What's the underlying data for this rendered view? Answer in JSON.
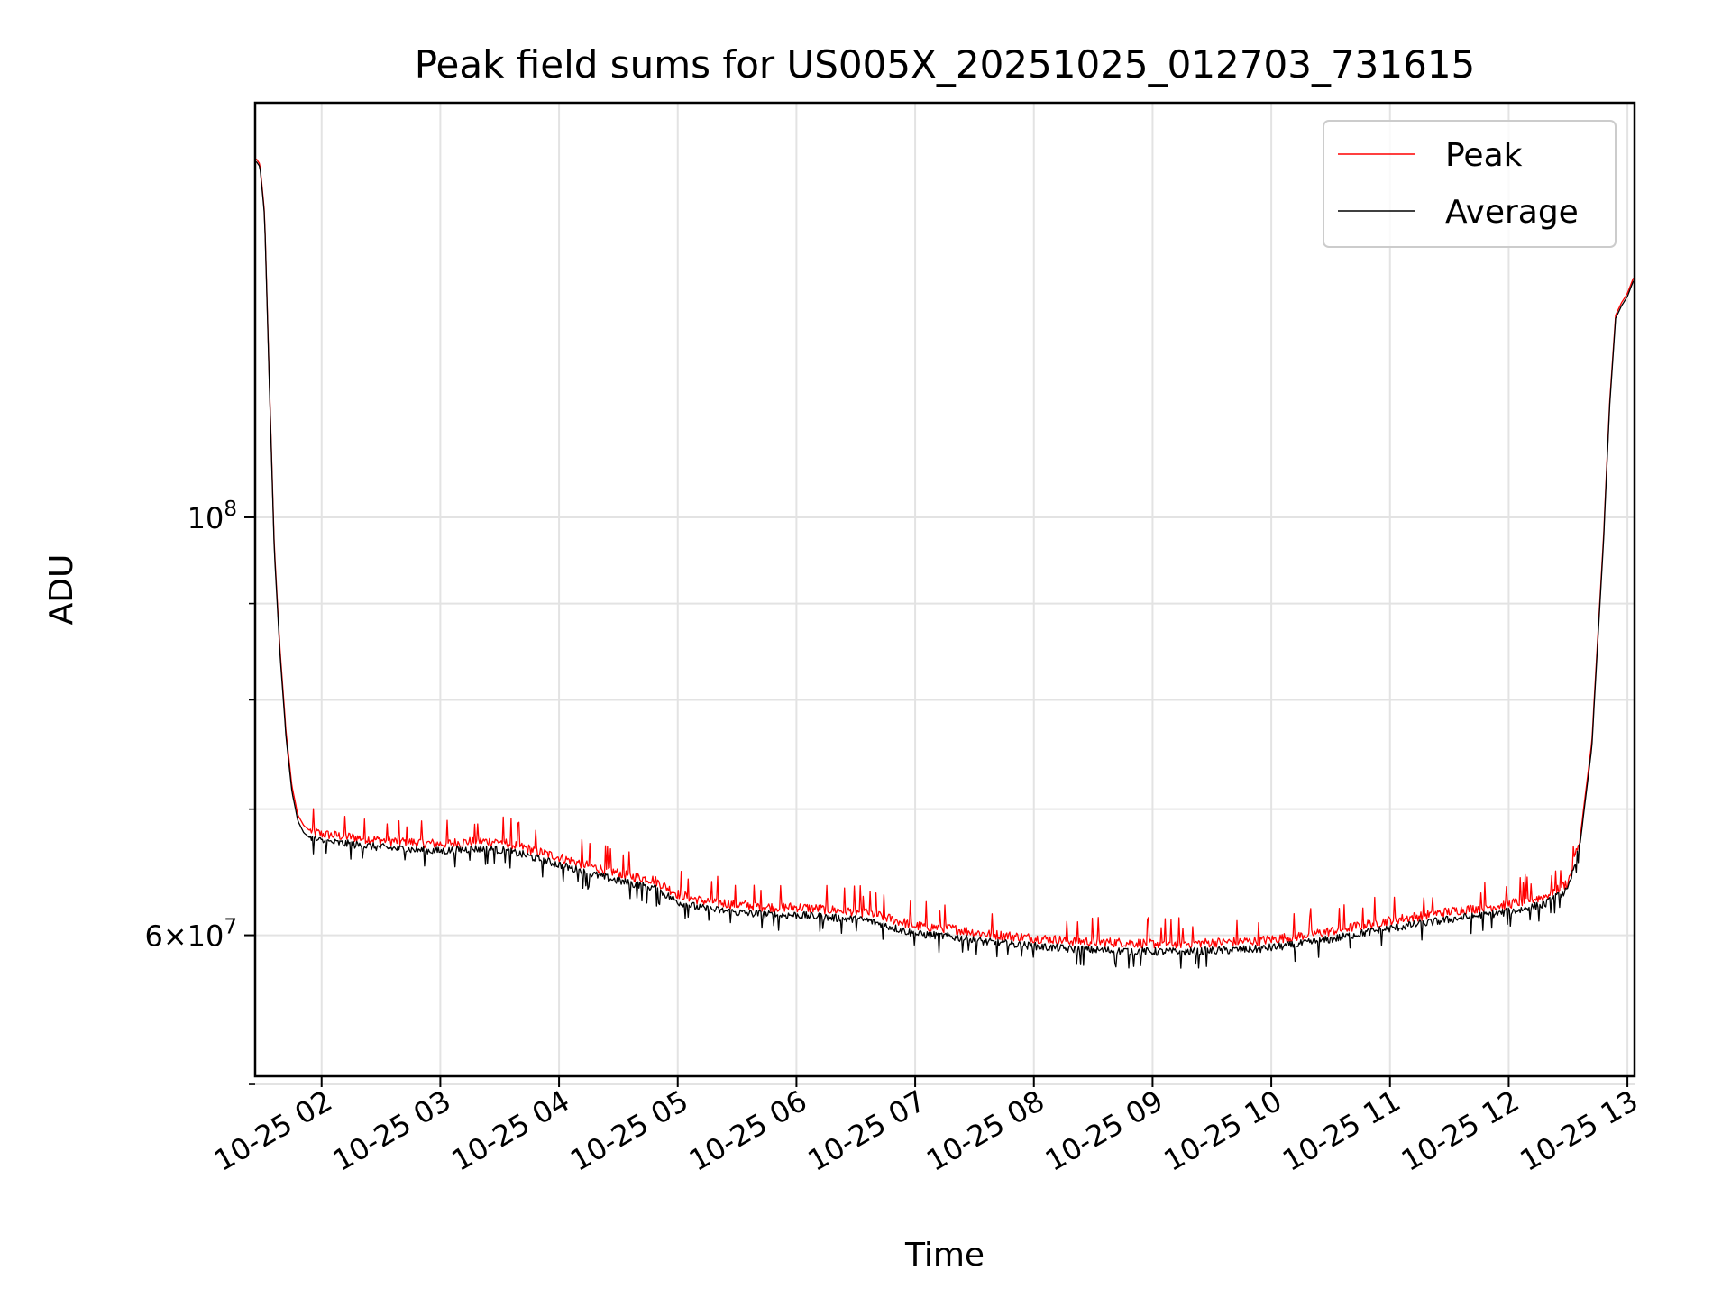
{
  "chart_data": {
    "type": "line",
    "title": "Peak field sums for US005X_20251025_012703_731615",
    "xlabel": "Time",
    "ylabel": "ADU",
    "yscale": "log",
    "ylim": [
      50500000,
      166000000
    ],
    "xlim": [
      1.44,
      13.06
    ],
    "grid": true,
    "legend_position": "top-right",
    "x_ticks": [
      {
        "value": 2,
        "label": "10-25 02"
      },
      {
        "value": 3,
        "label": "10-25 03"
      },
      {
        "value": 4,
        "label": "10-25 04"
      },
      {
        "value": 5,
        "label": "10-25 05"
      },
      {
        "value": 6,
        "label": "10-25 06"
      },
      {
        "value": 7,
        "label": "10-25 07"
      },
      {
        "value": 8,
        "label": "10-25 08"
      },
      {
        "value": 9,
        "label": "10-25 09"
      },
      {
        "value": 10,
        "label": "10-25 10"
      },
      {
        "value": 11,
        "label": "10-25 11"
      },
      {
        "value": 12,
        "label": "10-25 12"
      },
      {
        "value": 13,
        "label": "10-25 13"
      }
    ],
    "y_major_ticks": [
      {
        "value": 60000000,
        "mantissa": "6",
        "base": "10",
        "exponent": "7"
      },
      {
        "value": 100000000,
        "mantissa": "",
        "base": "10",
        "exponent": "8"
      }
    ],
    "y_minor_ticks": [
      50000000,
      70000000,
      80000000,
      90000000
    ],
    "times_unit": "hours since 10-25 00:00",
    "series": [
      {
        "name": "Peak",
        "color": "#ff0000",
        "x": [
          1.45,
          1.48,
          1.52,
          1.56,
          1.6,
          1.65,
          1.7,
          1.75,
          1.8,
          1.85,
          1.9,
          2.0,
          2.2,
          2.5,
          2.8,
          3.0,
          3.3,
          3.5,
          3.7,
          4.0,
          4.3,
          4.6,
          4.8,
          5.0,
          5.2,
          5.5,
          5.8,
          6.0,
          6.3,
          6.6,
          6.8,
          7.0,
          7.3,
          7.6,
          8.0,
          8.3,
          8.6,
          9.0,
          9.3,
          9.6,
          9.9,
          10.2,
          10.5,
          10.8,
          11.0,
          11.3,
          11.6,
          11.9,
          12.1,
          12.3,
          12.5,
          12.6,
          12.7,
          12.8,
          12.85,
          12.9,
          12.95,
          13.0,
          13.05
        ],
        "y": [
          155000000,
          154000000,
          145000000,
          118000000,
          97000000,
          85000000,
          77000000,
          72000000,
          69500000,
          68600000,
          68200000,
          67900000,
          67700000,
          67400000,
          67200000,
          67100000,
          67300000,
          67300000,
          66800000,
          66000000,
          65200000,
          64500000,
          64200000,
          63100000,
          62600000,
          62300000,
          62100000,
          62100000,
          61900000,
          61700000,
          61200000,
          60700000,
          60500000,
          60100000,
          59800000,
          59600000,
          59500000,
          59400000,
          59400000,
          59500000,
          59600000,
          59900000,
          60300000,
          60800000,
          61100000,
          61500000,
          61900000,
          62200000,
          62500000,
          62900000,
          64000000,
          67500000,
          76000000,
          98000000,
          115000000,
          128000000,
          130000000,
          131500000,
          134000000
        ]
      },
      {
        "name": "Average",
        "color": "#000000",
        "x": [
          1.45,
          1.48,
          1.52,
          1.56,
          1.6,
          1.65,
          1.7,
          1.75,
          1.8,
          1.85,
          1.9,
          2.0,
          2.2,
          2.5,
          2.8,
          3.0,
          3.3,
          3.5,
          3.7,
          4.0,
          4.3,
          4.6,
          4.8,
          5.0,
          5.2,
          5.5,
          5.8,
          6.0,
          6.3,
          6.6,
          6.8,
          7.0,
          7.3,
          7.6,
          8.0,
          8.3,
          8.6,
          9.0,
          9.3,
          9.6,
          9.9,
          10.2,
          10.5,
          10.8,
          11.0,
          11.3,
          11.6,
          11.9,
          12.1,
          12.3,
          12.5,
          12.6,
          12.7,
          12.8,
          12.85,
          12.9,
          12.95,
          13.0,
          13.05
        ],
        "y": [
          154500000,
          153500000,
          144500000,
          117500000,
          96500000,
          84500000,
          76500000,
          71500000,
          69000000,
          68000000,
          67600000,
          67300000,
          67100000,
          66800000,
          66600000,
          66500000,
          66700000,
          66600000,
          66200000,
          65400000,
          64600000,
          63900000,
          63600000,
          62500000,
          62000000,
          61700000,
          61500000,
          61500000,
          61300000,
          61100000,
          60600000,
          60100000,
          59900000,
          59500000,
          59200000,
          59000000,
          58900000,
          58800000,
          58800000,
          58900000,
          59000000,
          59300000,
          59700000,
          60200000,
          60500000,
          60900000,
          61300000,
          61600000,
          61900000,
          62300000,
          63400000,
          67000000,
          75500000,
          97500000,
          114500000,
          127500000,
          129500000,
          131000000,
          133500000
        ]
      }
    ]
  }
}
